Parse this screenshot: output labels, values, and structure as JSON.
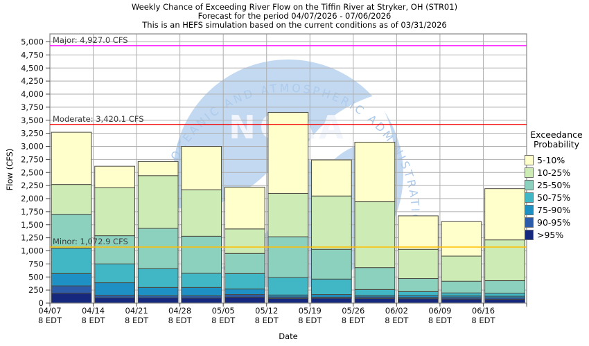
{
  "header": {
    "title": "Weekly Chance of Exceeding River Flow on the Tiffin River at Stryker, OH (STR01)",
    "subtitle": "Forecast for the period 04/07/2026 - 07/06/2026",
    "note": "This is an HEFS simulation based on the current conditions as of 03/31/2026"
  },
  "watermark": {
    "ring_text": "NATIONAL OCEANIC AND ATMOSPHERIC ADMINISTRATION",
    "acronym": "NOAA",
    "circle_color": "#c2d9f1",
    "text_color": "#aecbec"
  },
  "chart_data": {
    "type": "bar",
    "stacked": true,
    "title": "Weekly Chance of Exceeding River Flow on the Tiffin River at Stryker, OH (STR01)",
    "xlabel": "Date",
    "ylabel": "Flow (CFS)",
    "ylim": [
      0,
      5000
    ],
    "y_tick_step": 250,
    "y_ticks": [
      "0",
      "250",
      "500",
      "750",
      "1,000",
      "1,250",
      "1,500",
      "1,750",
      "2,000",
      "2,250",
      "2,500",
      "2,750",
      "3,000",
      "3,250",
      "3,500",
      "3,750",
      "4,000",
      "4,250",
      "4,500",
      "4,750",
      "5,000"
    ],
    "grid": true,
    "legend_position": "right",
    "categories": [
      "04/07",
      "04/14",
      "04/21",
      "04/28",
      "05/05",
      "05/12",
      "05/19",
      "05/26",
      "06/02",
      "06/09",
      "06/16"
    ],
    "category_sublabel": "8 EDT",
    "series": [
      {
        "name": ">95%",
        "color": "#15287e",
        "cumulative_cfs": [
          190,
          100,
          100,
          97,
          115,
          88,
          92,
          88,
          84,
          78,
          74
        ]
      },
      {
        "name": "90-95%",
        "color": "#2c5ba9",
        "cumulative_cfs": [
          330,
          150,
          140,
          140,
          165,
          118,
          114,
          118,
          110,
          105,
          100
        ]
      },
      {
        "name": "75-90%",
        "color": "#1f90c4",
        "cumulative_cfs": [
          565,
          390,
          300,
          300,
          270,
          155,
          165,
          145,
          145,
          137,
          132
        ]
      },
      {
        "name": "50-75%",
        "color": "#41b6c4",
        "cumulative_cfs": [
          1050,
          750,
          660,
          570,
          565,
          490,
          460,
          260,
          220,
          195,
          190
        ]
      },
      {
        "name": "25-50%",
        "color": "#8bd1bd",
        "cumulative_cfs": [
          1700,
          1290,
          1430,
          1280,
          950,
          1270,
          1030,
          680,
          470,
          420,
          430
        ]
      },
      {
        "name": "10-25%",
        "color": "#cdebb4",
        "cumulative_cfs": [
          2270,
          2210,
          2440,
          2170,
          1420,
          2100,
          2050,
          1940,
          1030,
          900,
          1210
        ]
      },
      {
        "name": "5-10%",
        "color": "#ffffcc",
        "cumulative_cfs": [
          3270,
          2620,
          2710,
          3000,
          2220,
          3650,
          2740,
          3080,
          1670,
          1560,
          2190
        ]
      }
    ],
    "thresholds": [
      {
        "name": "Major",
        "label": "Major: 4,927.0 CFS",
        "value": 4927.0,
        "color": "#ff00ff"
      },
      {
        "name": "Moderate",
        "label": "Moderate: 3,420.1 CFS",
        "value": 3420.1,
        "color": "#f40000"
      },
      {
        "name": "Minor",
        "label": "Minor: 1,072.9 CFS",
        "value": 1072.9,
        "color": "#ffbe00"
      }
    ],
    "legend": {
      "title_lines": [
        "Exceedance",
        "Probability"
      ],
      "items": [
        {
          "label": "5-10%",
          "color": "#ffffcc"
        },
        {
          "label": "10-25%",
          "color": "#cdebb4"
        },
        {
          "label": "25-50%",
          "color": "#8bd1bd"
        },
        {
          "label": "50-75%",
          "color": "#41b6c4"
        },
        {
          "label": "75-90%",
          "color": "#1f90c4"
        },
        {
          "label": "90-95%",
          "color": "#2c5ba9"
        },
        {
          "label": ">95%",
          "color": "#15287e"
        }
      ]
    }
  }
}
